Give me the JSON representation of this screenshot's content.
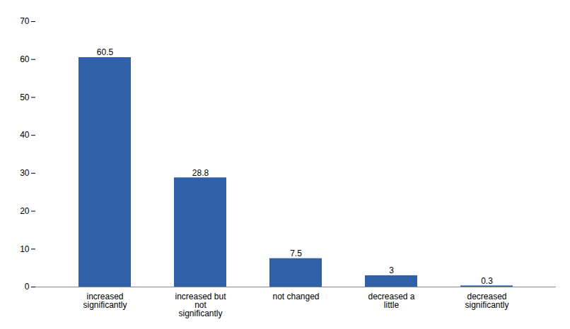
{
  "chart_data": {
    "type": "bar",
    "categories": [
      "increased\nsignificantly",
      "increased but\nnot\nsignificantly",
      "not changed",
      "decreased a\nlittle",
      "decreased\nsignificantly"
    ],
    "values": [
      60.5,
      28.8,
      7.5,
      3,
      0.3
    ],
    "color": "#3060A8",
    "ylim": [
      0,
      70
    ],
    "yticks": [
      0,
      10,
      20,
      30,
      40,
      50,
      60,
      70
    ],
    "grid": false,
    "data_labels": true
  }
}
